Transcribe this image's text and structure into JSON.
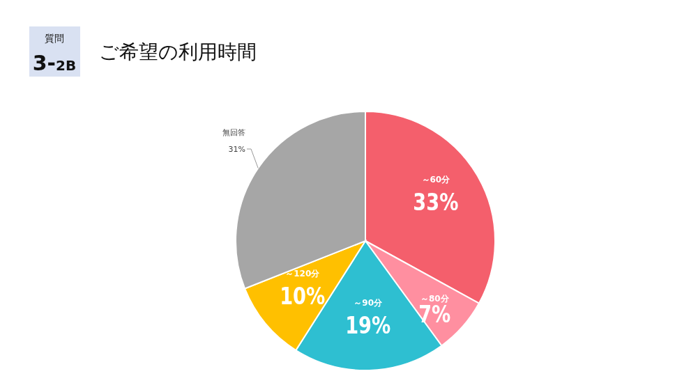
{
  "chart_data": {
    "type": "pie",
    "title": "ご希望の利用時間",
    "annotations": [
      "質問",
      "3-2B"
    ],
    "categories": [
      "～60分",
      "～80分",
      "～90分",
      "～120分",
      "無回答"
    ],
    "values": [
      33,
      7,
      19,
      10,
      31
    ],
    "value_labels": [
      "33%",
      "7%",
      "19%",
      "10%",
      "31%"
    ],
    "colors": [
      "#f45f6c",
      "#ff8fa0",
      "#2ebfd1",
      "#ffc000",
      "#a6a6a6"
    ]
  }
}
